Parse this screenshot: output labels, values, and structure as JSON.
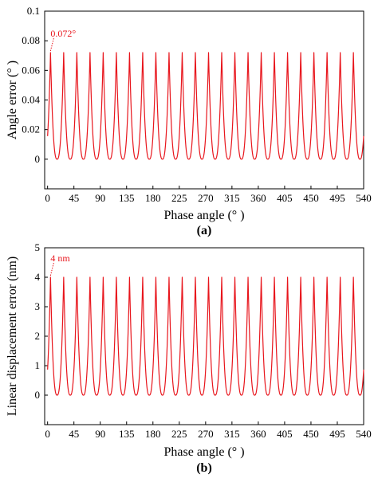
{
  "chart_data": [
    {
      "type": "line",
      "panel_label": "(a)",
      "xlabel": "Phase angle (° )",
      "ylabel": "Angle error (° )",
      "xlim": [
        -5,
        540
      ],
      "ylim": [
        -0.02,
        0.1
      ],
      "xticks": [
        "0",
        "45",
        "90",
        "135",
        "180",
        "225",
        "270",
        "315",
        "360",
        "405",
        "450",
        "495",
        "540"
      ],
      "yticks": [
        "0",
        "0.02",
        "0.04",
        "0.06",
        "0.08",
        "0.1"
      ],
      "series": [
        {
          "color": "#e8151c",
          "period_deg": 22.5,
          "peak_x_first": 5,
          "peak_value": 0.072,
          "min_value": 0,
          "x_range": [
            0,
            540
          ]
        }
      ],
      "annotations": [
        {
          "text": "0.072°",
          "x": 5,
          "y": 0.072,
          "color": "#e8151c"
        }
      ]
    },
    {
      "type": "line",
      "panel_label": "(b)",
      "xlabel": "Phase angle (° )",
      "ylabel": "Linear displacement error (nm)",
      "xlim": [
        -5,
        540
      ],
      "ylim": [
        -1,
        5
      ],
      "xticks": [
        "0",
        "45",
        "90",
        "135",
        "180",
        "225",
        "270",
        "315",
        "360",
        "405",
        "450",
        "495",
        "540"
      ],
      "yticks": [
        "0",
        "1",
        "2",
        "3",
        "4",
        "5"
      ],
      "series": [
        {
          "color": "#e8151c",
          "period_deg": 22.5,
          "peak_x_first": 5,
          "peak_value": 4,
          "min_value": 0,
          "x_range": [
            0,
            540
          ]
        }
      ],
      "annotations": [
        {
          "text": "4 nm",
          "x": 5,
          "y": 4,
          "color": "#e8151c"
        }
      ]
    }
  ]
}
